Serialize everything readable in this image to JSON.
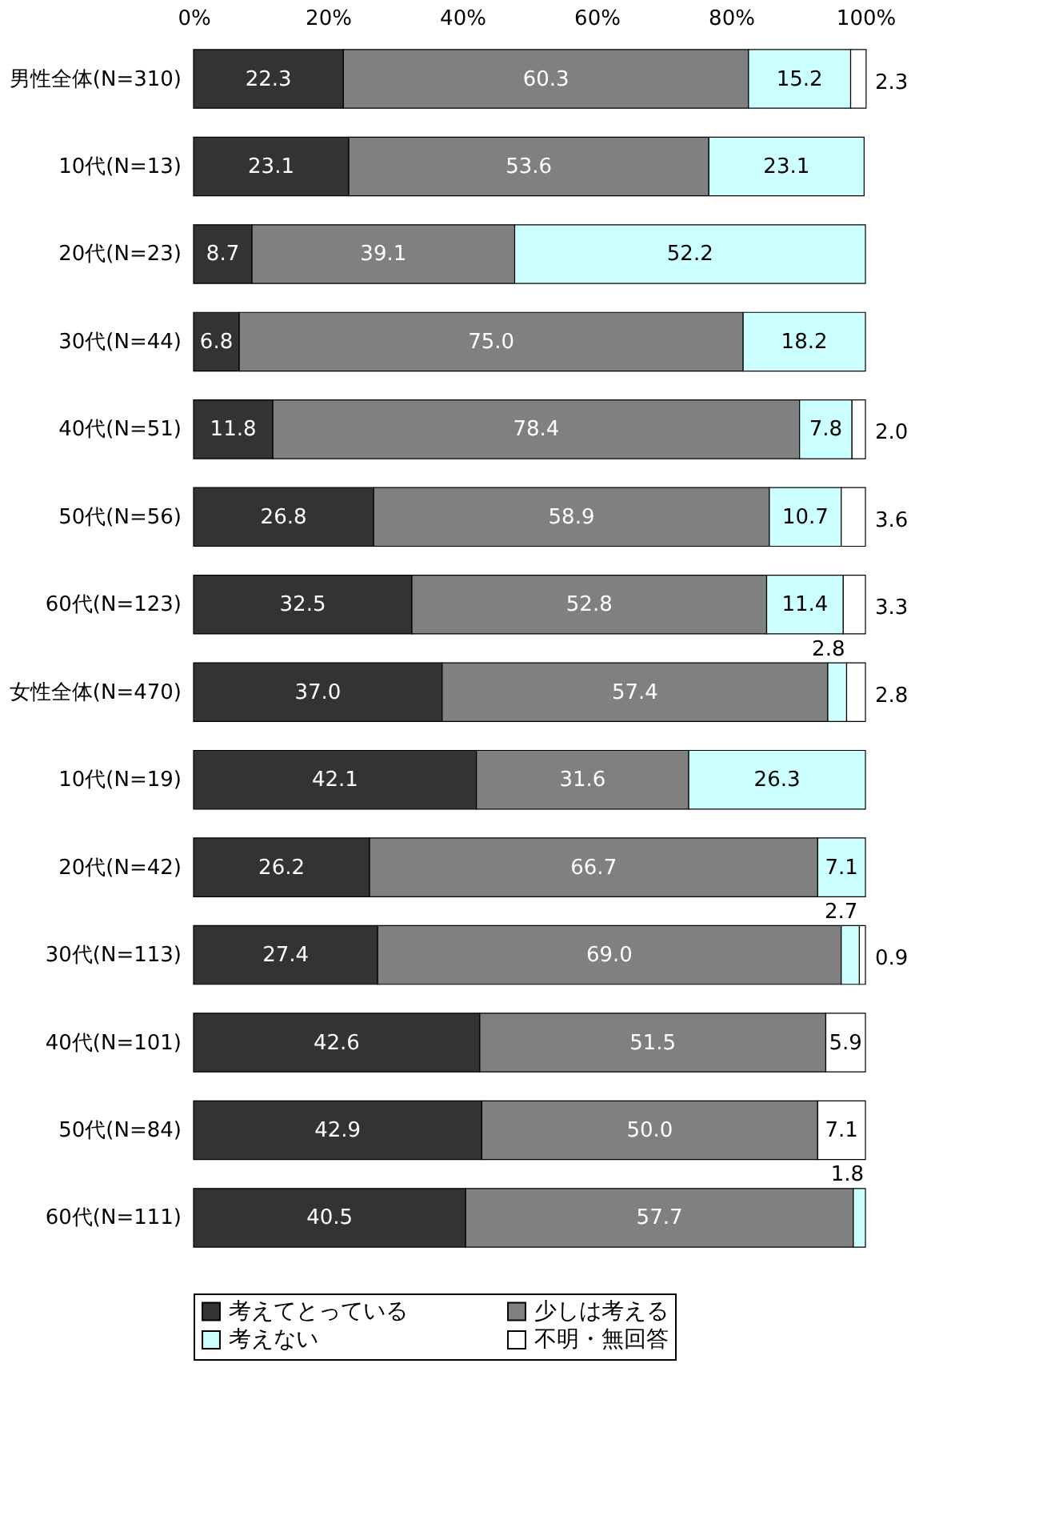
{
  "chart_data": {
    "type": "bar",
    "orientation": "horizontal",
    "stacked": true,
    "grid": false,
    "legend": "bottom",
    "categories": [
      "男性全体(N=310)",
      "10代(N=13)",
      "20代(N=23)",
      "30代(N=44)",
      "40代(N=51)",
      "50代(N=56)",
      "60代(N=123)",
      "女性全体(N=470)",
      "10代(N=19)",
      "20代(N=42)",
      "30代(N=113)",
      "40代(N=101)",
      "50代(N=84)",
      "60代(N=111)"
    ],
    "xlim": [
      0,
      100
    ],
    "xticks": [
      {
        "value": 0,
        "label": "0%"
      },
      {
        "value": 20,
        "label": "20%"
      },
      {
        "value": 40,
        "label": "40%"
      },
      {
        "value": 60,
        "label": "60%"
      },
      {
        "value": 80,
        "label": "80%"
      },
      {
        "value": 100,
        "label": "100%"
      }
    ],
    "series": [
      {
        "name": "考えてとっている",
        "color": "#333333",
        "values": [
          22.3,
          23.1,
          8.7,
          6.8,
          11.8,
          26.8,
          32.5,
          37.0,
          42.1,
          26.2,
          27.4,
          42.6,
          42.9,
          40.5
        ],
        "value_labels": [
          "22.3",
          "23.1",
          "8.7",
          "6.8",
          "11.8",
          "26.8",
          "32.5",
          "37.0",
          "42.1",
          "26.2",
          "27.4",
          "42.6",
          "42.9",
          "40.5"
        ]
      },
      {
        "name": "少しは考える",
        "color": "#808080",
        "values": [
          60.3,
          53.6,
          39.1,
          75.0,
          78.4,
          58.9,
          52.8,
          57.4,
          31.6,
          66.7,
          69.0,
          51.5,
          50.0,
          57.7
        ],
        "value_labels": [
          "60.3",
          "53.6",
          "39.1",
          "75.0",
          "78.4",
          "58.9",
          "52.8",
          "57.4",
          "31.6",
          "66.7",
          "69.0",
          "51.5",
          "50.0",
          "57.7"
        ]
      },
      {
        "name": "考えない",
        "color": "#ccffff",
        "values": [
          15.2,
          23.1,
          52.2,
          18.2,
          7.8,
          10.7,
          11.4,
          2.8,
          26.3,
          7.1,
          2.7,
          null,
          null,
          1.8
        ],
        "value_labels": [
          "15.2",
          "23.1",
          "52.2",
          "18.2",
          "7.8",
          "10.7",
          "11.4",
          "2.8",
          "26.3",
          "7.1",
          "2.7",
          null,
          null,
          "1.8"
        ]
      },
      {
        "name": "不明・無回答",
        "color": "#ffffff",
        "values": [
          2.3,
          null,
          null,
          null,
          2.0,
          3.6,
          3.3,
          2.8,
          null,
          null,
          0.9,
          5.9,
          7.1,
          null
        ],
        "value_labels": [
          "2.3",
          null,
          null,
          null,
          "2.0",
          "3.6",
          "3.3",
          "2.8",
          null,
          null,
          "0.9",
          "5.9",
          "7.1",
          null
        ]
      }
    ]
  }
}
